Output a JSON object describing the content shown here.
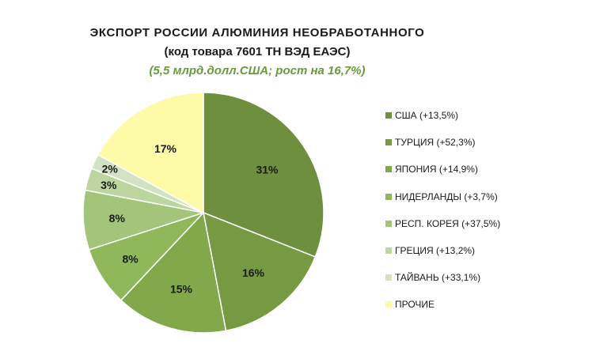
{
  "chart_data": {
    "type": "pie",
    "title": "ЭКСПОРТ  РОССИИ  АЛЮМИНИЯ  НЕОБРАБОТАННОГО",
    "subtitle": "(код товара  7601 ТН ВЭД ЕАЭС)",
    "note": "(5,5 млрд.долл.США;  рост на 16,7%)",
    "legend_position": "right",
    "slices": [
      {
        "name": "США (+13,5%)",
        "value": 31,
        "label": "31%",
        "color": "#6e8f3d"
      },
      {
        "name": "ТУРЦИЯ (+52,3%)",
        "value": 16,
        "label": "16%",
        "color": "#769a42"
      },
      {
        "name": "ЯПОНИЯ (+14,9%)",
        "value": 15,
        "label": "15%",
        "color": "#82a84c"
      },
      {
        "name": "НИДЕРЛАНДЫ (+3,7%)",
        "value": 8,
        "label": "8%",
        "color": "#8fb85a"
      },
      {
        "name": "РЕСП. КОРЕЯ (+37,5%)",
        "value": 8,
        "label": "8%",
        "color": "#a3c57a"
      },
      {
        "name": "ГРЕЦИЯ (+13,2%)",
        "value": 3,
        "label": "3%",
        "color": "#bdd6a0"
      },
      {
        "name": "ТАЙВАНЬ (+33,1%)",
        "value": 2,
        "label": "2%",
        "color": "#d3e2c2"
      },
      {
        "name": "ПРОЧИЕ",
        "value": 17,
        "label": "17%",
        "color": "#fdfaa8"
      }
    ]
  }
}
